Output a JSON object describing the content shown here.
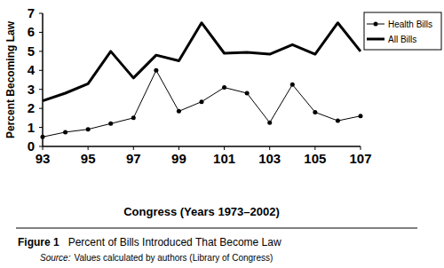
{
  "chart_data": {
    "type": "line",
    "title": "Percent of Bills Introduced That Become Law",
    "figure_label": "Figure 1",
    "source_label": "Source:",
    "source": "Values calculated by authors (Library of Congress)",
    "x_label": "Congress (Years 1973–2002)",
    "y_label": "Percent Becoming Law",
    "x": [
      93,
      94,
      95,
      96,
      97,
      98,
      99,
      100,
      101,
      102,
      103,
      104,
      105,
      106,
      107
    ],
    "series": [
      {
        "name": "Health Bills",
        "color": "#000000",
        "marker": "circle",
        "line_style": "thin",
        "values": [
          0.5,
          0.75,
          0.9,
          1.2,
          1.5,
          4.0,
          1.85,
          2.35,
          3.1,
          2.8,
          1.25,
          3.25,
          1.8,
          1.35,
          1.6
        ]
      },
      {
        "name": "All Bills",
        "color": "#000000",
        "marker": "none",
        "line_style": "thick",
        "values": [
          2.4,
          2.8,
          3.3,
          5.0,
          3.6,
          4.8,
          4.5,
          6.5,
          4.9,
          4.95,
          4.85,
          5.35,
          4.85,
          6.5,
          5.0
        ]
      }
    ],
    "xlim": [
      93,
      107
    ],
    "xticks": [
      93,
      95,
      97,
      99,
      101,
      103,
      105,
      107
    ],
    "ylim": [
      0,
      7
    ],
    "yticks": [
      0,
      1,
      2,
      3,
      4,
      5,
      6,
      7
    ],
    "grid": false,
    "legend": "upper-right"
  }
}
